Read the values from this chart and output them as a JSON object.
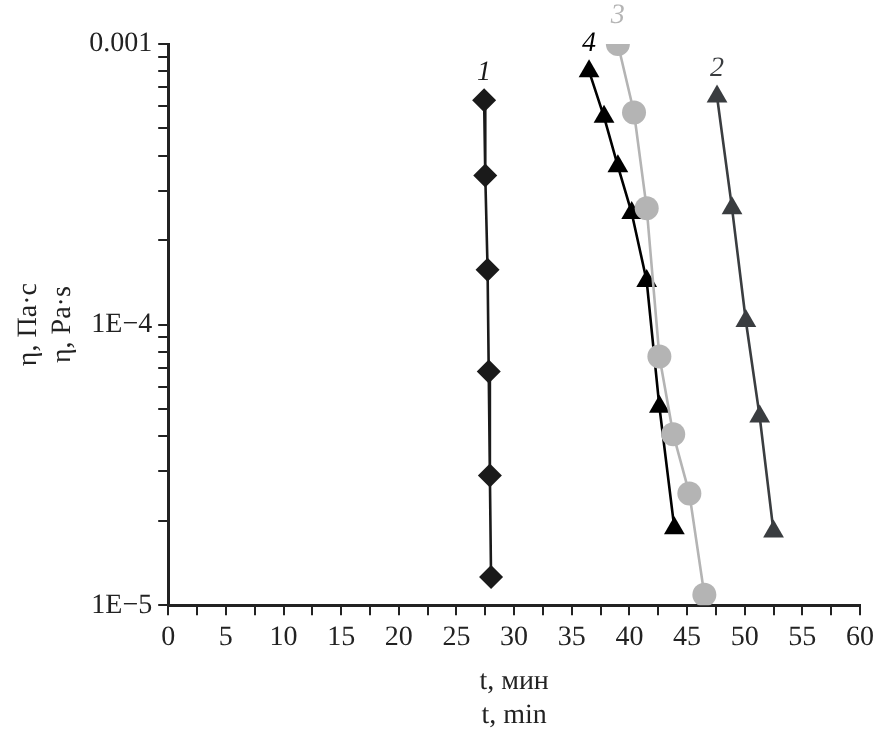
{
  "chart_data": {
    "type": "line",
    "xlabel": "t, мин\nt, min",
    "ylabel": "η, Па·с\nη, Pa·s",
    "log": "y",
    "xlim": [
      0,
      60
    ],
    "xticks": [
      0,
      {
        "value": 2.5,
        "label": null
      },
      5,
      {
        "value": 7.5,
        "label": null
      },
      10,
      {
        "value": 12.5,
        "label": null
      },
      15,
      {
        "value": 17.5,
        "label": null
      },
      20,
      {
        "value": 22.5,
        "label": null
      },
      25,
      {
        "value": 27.5,
        "label": null
      },
      30,
      {
        "value": 32.5,
        "label": null
      },
      35,
      {
        "value": 37.5,
        "label": null
      },
      40,
      {
        "value": 42.5,
        "label": null
      },
      45,
      {
        "value": 47.5,
        "label": null
      },
      50,
      {
        "value": 52.5,
        "label": null
      },
      55,
      {
        "value": 57.5,
        "label": null
      },
      60
    ],
    "ylim": [
      1e-05,
      0.001
    ],
    "yticks": [
      {
        "value": 1e-05,
        "label": "1E−5"
      },
      {
        "value": 2e-05,
        "label": null
      },
      {
        "value": 3e-05,
        "label": null
      },
      {
        "value": 4e-05,
        "label": null
      },
      {
        "value": 5e-05,
        "label": null
      },
      {
        "value": 6e-05,
        "label": null
      },
      {
        "value": 7e-05,
        "label": null
      },
      {
        "value": 8e-05,
        "label": null
      },
      {
        "value": 9e-05,
        "label": null
      },
      {
        "value": 0.0001,
        "label": "1E−4"
      },
      {
        "value": 0.0002,
        "label": null
      },
      {
        "value": 0.0003,
        "label": null
      },
      {
        "value": 0.0004,
        "label": null
      },
      {
        "value": 0.0005,
        "label": null
      },
      {
        "value": 0.0006,
        "label": null
      },
      {
        "value": 0.0007,
        "label": null
      },
      {
        "value": 0.0008,
        "label": null
      },
      {
        "value": 0.0009,
        "label": null
      },
      0.001
    ],
    "grid": false,
    "legend": false,
    "line_style": "solid",
    "series": [
      {
        "name": "1",
        "color": "#1a1a1a",
        "marker": "diamond",
        "x": [
          27.4,
          27.5,
          27.7,
          27.8,
          27.9,
          28.0
        ],
        "values": [
          0.00063,
          0.00034,
          0.000157,
          6.8e-05,
          2.9e-05,
          1.26e-05
        ]
      },
      {
        "name": "2",
        "color": "#3a3d40",
        "marker": "triangle",
        "x": [
          47.6,
          48.9,
          50.1,
          51.3,
          52.5
        ],
        "values": [
          0.00065,
          0.00026,
          0.000103,
          4.7e-05,
          1.83e-05
        ]
      },
      {
        "name": "3",
        "color": "#b4b4b4",
        "marker": "circle",
        "x": [
          39.0,
          40.4,
          41.5,
          42.6,
          43.8,
          45.2,
          46.5
        ],
        "values": [
          0.001,
          0.00057,
          0.00026,
          7.7e-05,
          4.07e-05,
          2.5e-05,
          1.09e-05
        ]
      },
      {
        "name": "4",
        "color": "#000000",
        "marker": "triangle",
        "x": [
          36.5,
          37.8,
          39.0,
          40.2,
          41.5,
          42.6,
          43.9
        ],
        "values": [
          0.0008,
          0.00055,
          0.000367,
          0.00025,
          0.000143,
          5.1e-05,
          1.88e-05
        ]
      }
    ]
  }
}
